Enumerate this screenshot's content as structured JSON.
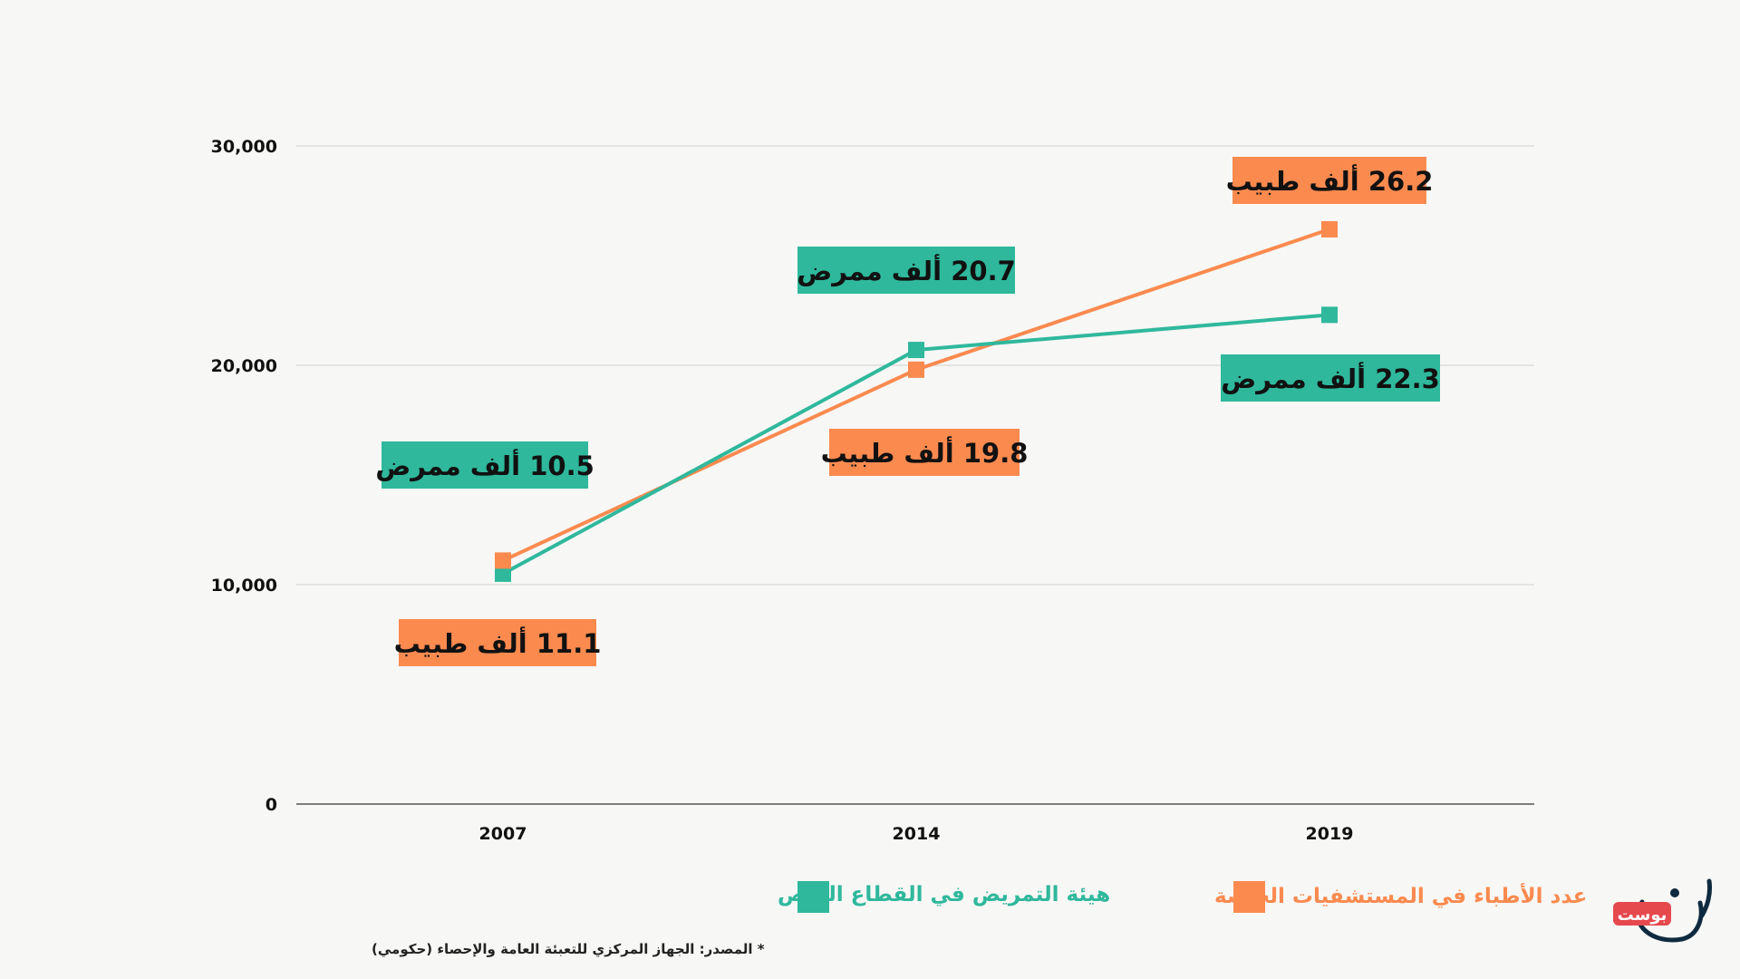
{
  "chart_data": {
    "type": "line",
    "x": [
      "2007",
      "2014",
      "2019"
    ],
    "ylim": [
      0,
      30000
    ],
    "yticks": [
      "0",
      "10,000",
      "20,000",
      "30,000"
    ],
    "grid": true,
    "legend_position": "bottom",
    "series": [
      {
        "key": "doctors",
        "name": "عدد الأطباء في المستشفيات الخاصة",
        "color": "#fb8a4f",
        "values": [
          11100,
          19800,
          26200
        ],
        "labels": [
          "11.1 ألف طبيب",
          "19.8 ألف طبيب",
          "26.2 ألف طبيب"
        ]
      },
      {
        "key": "nurses",
        "name": "هيئة التمريض في القطاع الخاص",
        "color": "#2fb89c",
        "values": [
          10500,
          20700,
          22300
        ],
        "labels": [
          "10.5 ألف ممرض",
          "20.7 ألف ممرض",
          "22.3 ألف ممرض"
        ]
      }
    ]
  },
  "source": "* المصدر: الجهاز المركزي للتعبئة العامة والإحصاء (حكومي)",
  "logo": {
    "badge_text": "بوست",
    "badge_color": "#e5484d",
    "mark_color": "#0f2a3f"
  }
}
